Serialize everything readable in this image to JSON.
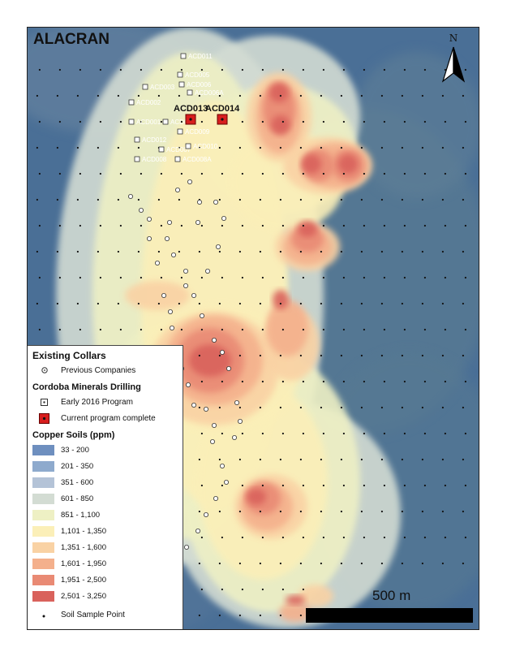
{
  "map": {
    "title": "ALACRAN",
    "north_label": "N",
    "scale_label": "500 m",
    "current_holes": [
      {
        "name": "ACD013"
      },
      {
        "name": "ACD014"
      }
    ],
    "early_holes": [
      "ACD011",
      "ACD005",
      "ACD006",
      "ACD006A",
      "ACD003",
      "ACD002",
      "ACD001",
      "ACD004",
      "ACD009",
      "ACD012",
      "ACD007",
      "ACD010",
      "ACD008",
      "ACD008A"
    ],
    "colors": {
      "background": "#4a6f96",
      "current_hole": "#d81e1e"
    }
  },
  "legend": {
    "existing_collars_title": "Existing Collars",
    "previous_companies": "Previous Companies",
    "cordoba_title": "Cordoba Minerals Drilling",
    "early_program": "Early 2016 Program",
    "current_program": "Current program complete",
    "copper_title": "Copper Soils (ppm)",
    "classes": [
      {
        "label": "33 - 200",
        "color": "#6e8fbf"
      },
      {
        "label": "201 - 350",
        "color": "#8eaacd"
      },
      {
        "label": "351 - 600",
        "color": "#b4c3d7"
      },
      {
        "label": "601 - 850",
        "color": "#d3dcd3"
      },
      {
        "label": "851 - 1,100",
        "color": "#eef0c4"
      },
      {
        "label": "1,101 - 1,350",
        "color": "#fbefb8"
      },
      {
        "label": "1,351 - 1,600",
        "color": "#f9d2a4"
      },
      {
        "label": "1,601 - 1,950",
        "color": "#f4b08c"
      },
      {
        "label": "1,951 - 2,500",
        "color": "#e98a74"
      },
      {
        "label": "2,501 - 3,250",
        "color": "#d9625c"
      }
    ],
    "soil_point": "Soil Sample Point"
  }
}
